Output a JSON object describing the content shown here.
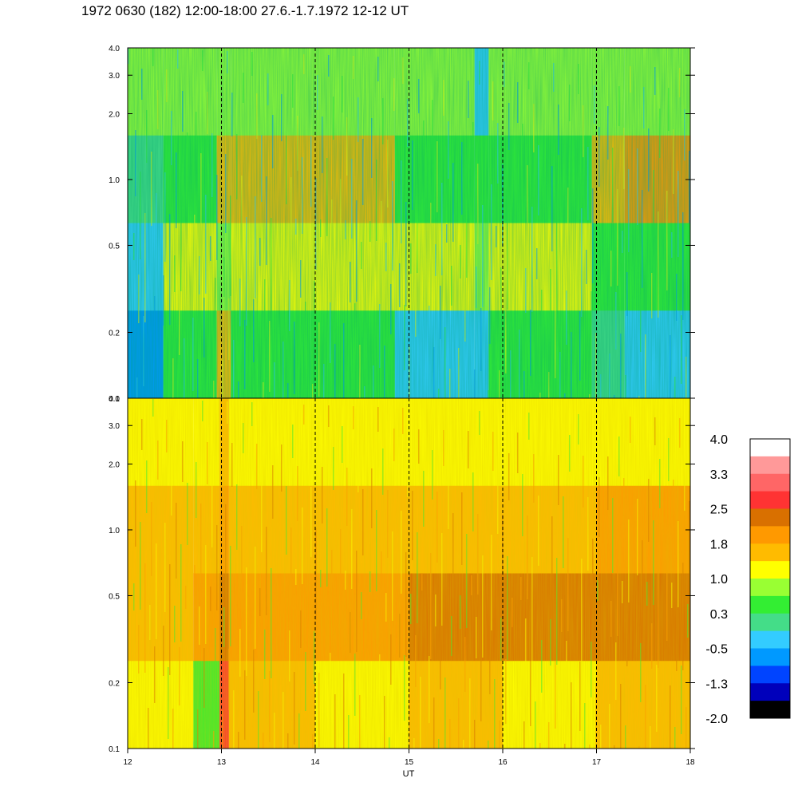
{
  "title": "1972 0630 (182) 12:00-18:00 27.6.-1.7.1972  12-12 UT",
  "chart_data": [
    {
      "type": "heatmap",
      "panel": "top",
      "x_range": [
        12,
        18
      ],
      "y_range": [
        0.1,
        4.0
      ],
      "y_scale": "log",
      "y_ticks": [
        "0.1",
        "0.2",
        "0.5",
        "1.0",
        "2.0",
        "3.0",
        "4.0"
      ],
      "x_ticks": [],
      "dashed_hour_lines": [
        13,
        14,
        15,
        16,
        17
      ],
      "dominant_level": "0.3 to 1.0 (green/yellow), blue below 0.5 before 12.4 UT and near 15.8 UT, orange bands near 1.0 and 1.5"
    },
    {
      "type": "heatmap",
      "panel": "bottom",
      "x_range": [
        12,
        18
      ],
      "y_range": [
        0.1,
        4.0
      ],
      "y_scale": "log",
      "y_ticks": [
        "0.1",
        "0.2",
        "0.5",
        "1.0",
        "2.0",
        "3.0",
        "4.0"
      ],
      "x_ticks": [
        "12",
        "13",
        "14",
        "15",
        "16",
        "17",
        "18"
      ],
      "xlabel": "UT",
      "dashed_hour_lines": [
        13,
        14,
        15,
        16,
        17
      ],
      "dominant_level": "1.0 to 2.5 (yellow/orange), red column near 13 UT at low frequencies, dark-orange band near 0.6"
    }
  ],
  "colorbar": {
    "labels": [
      "4.0",
      "3.3",
      "2.5",
      "1.8",
      "1.0",
      "0.3",
      "-0.5",
      "-1.3",
      "-2.0"
    ],
    "colors": [
      "#ffffff",
      "#ff9999",
      "#ff6666",
      "#ff3333",
      "#d97000",
      "#ff9900",
      "#ffbb00",
      "#ffff00",
      "#99ff33",
      "#33ee33",
      "#44dd88",
      "#33ccff",
      "#0099ff",
      "#0044ff",
      "#0000bb",
      "#000000"
    ]
  }
}
